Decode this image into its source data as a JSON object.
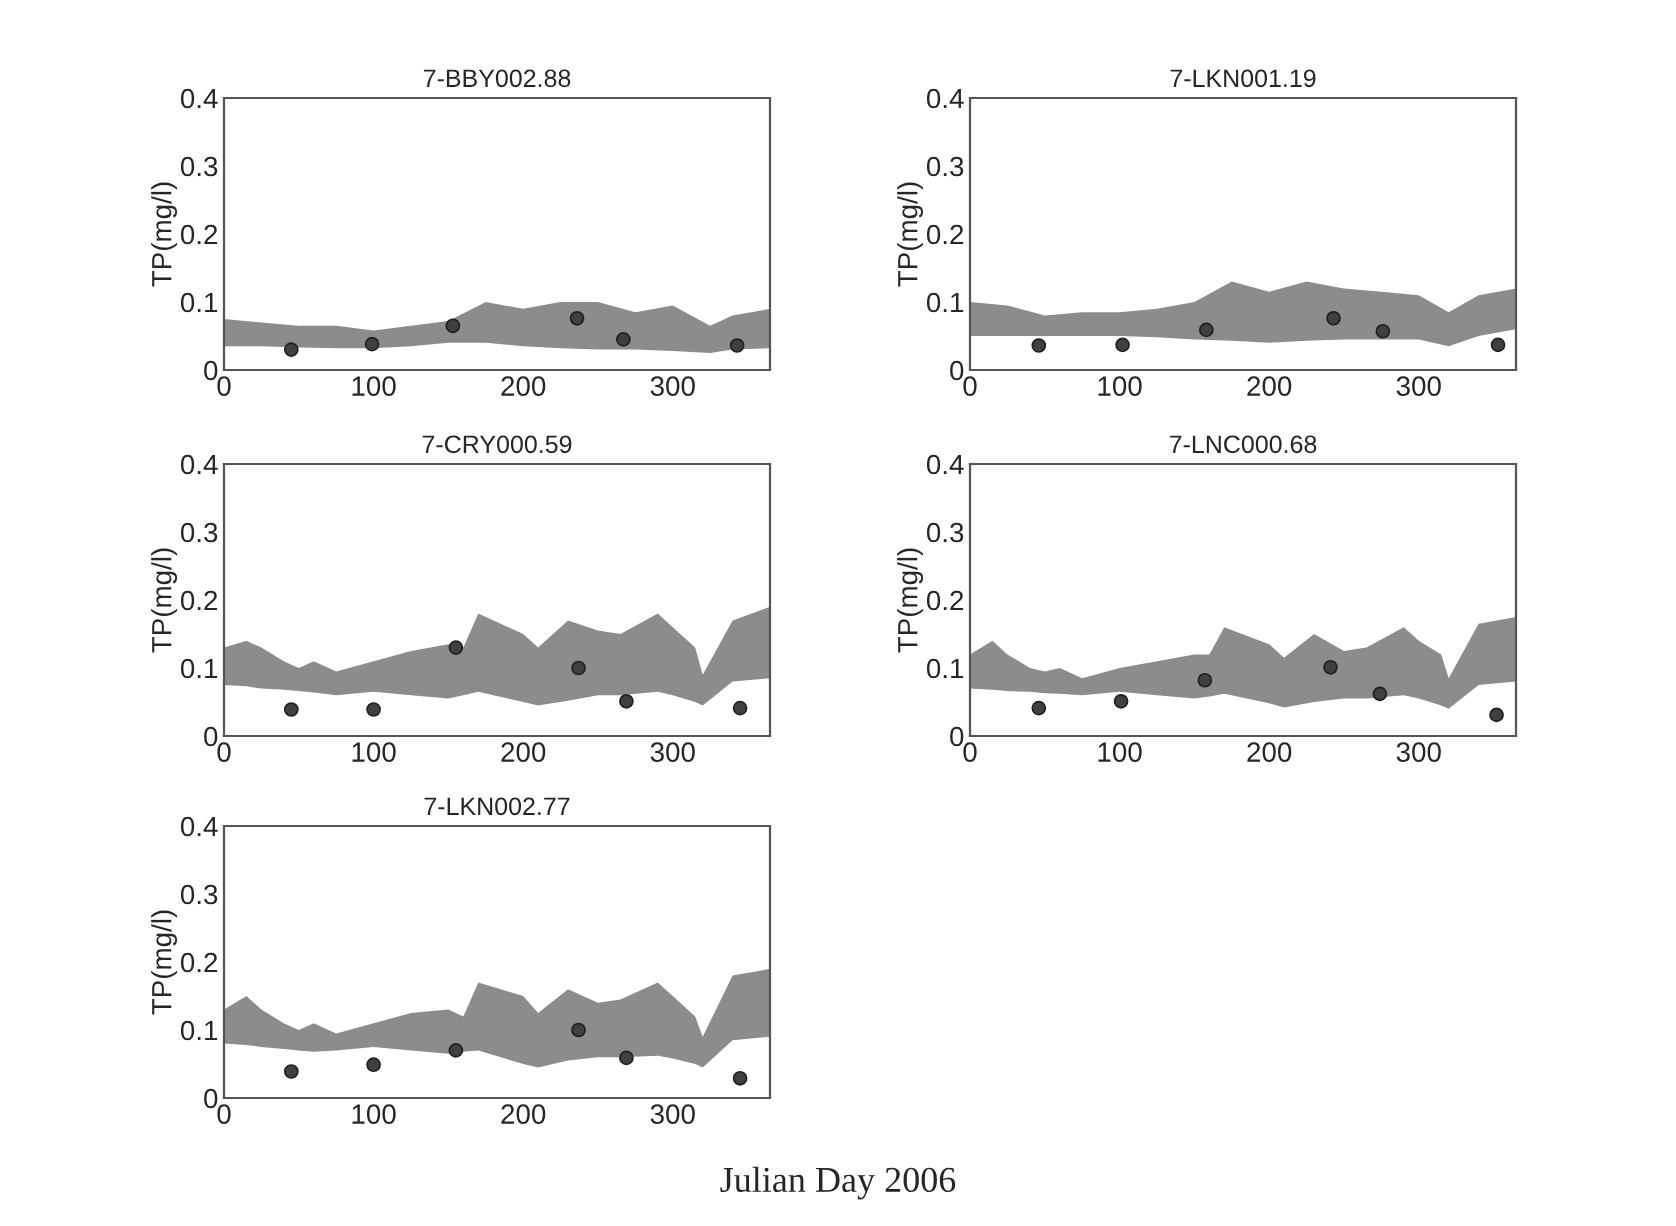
{
  "chart_data": [
    {
      "type": "scatter",
      "title": "7-BBY002.88",
      "ylabel": "TP(mg/l)",
      "xlim": [
        0,
        365
      ],
      "ylim": [
        0,
        0.4
      ],
      "xticks": [
        0,
        100,
        200,
        300
      ],
      "yticks": [
        0,
        0.1,
        0.2,
        0.3,
        0.4
      ],
      "grid": false,
      "legend": false,
      "marker": "circle",
      "series": [
        {
          "type": "line",
          "color": "#8c8c8c",
          "x": [
            0,
            25,
            50,
            75,
            100,
            125,
            150,
            175,
            200,
            225,
            250,
            275,
            300,
            325,
            340,
            365
          ],
          "values": [
            null,
            null,
            null,
            null,
            null,
            null,
            null,
            null,
            null,
            null,
            null,
            null,
            null,
            null,
            null,
            null
          ],
          "lower": [
            0.035,
            0.035,
            0.033,
            0.032,
            0.032,
            0.035,
            0.04,
            0.04,
            0.035,
            0.032,
            0.03,
            0.03,
            0.028,
            0.025,
            0.03,
            0.032
          ],
          "upper": [
            0.075,
            0.07,
            0.065,
            0.065,
            0.058,
            0.065,
            0.072,
            0.1,
            0.09,
            0.1,
            0.1,
            0.085,
            0.095,
            0.065,
            0.08,
            0.09
          ]
        },
        {
          "color": "#404040",
          "x": [
            45,
            99,
            153,
            236,
            267,
            343
          ],
          "values": [
            0.03,
            0.038,
            0.065,
            0.076,
            0.045,
            0.036
          ]
        }
      ]
    },
    {
      "type": "scatter",
      "title": "7-LKN001.19",
      "ylabel": "TP(mg/l)",
      "xlim": [
        0,
        365
      ],
      "ylim": [
        0,
        0.4
      ],
      "xticks": [
        0,
        100,
        200,
        300
      ],
      "yticks": [
        0,
        0.1,
        0.2,
        0.3,
        0.4
      ],
      "grid": false,
      "legend": false,
      "marker": "circle",
      "series": [
        {
          "type": "line",
          "color": "#8c8c8c",
          "x": [
            0,
            25,
            50,
            75,
            100,
            125,
            150,
            175,
            200,
            225,
            250,
            275,
            300,
            320,
            340,
            365
          ],
          "values": [
            null,
            null,
            null,
            null,
            null,
            null,
            null,
            null,
            null,
            null,
            null,
            null,
            null,
            null,
            null,
            null
          ],
          "lower": [
            0.05,
            0.05,
            0.05,
            0.05,
            0.05,
            0.048,
            0.045,
            0.043,
            0.04,
            0.043,
            0.045,
            0.045,
            0.045,
            0.035,
            0.05,
            0.06
          ],
          "upper": [
            0.1,
            0.095,
            0.08,
            0.085,
            0.085,
            0.09,
            0.1,
            0.13,
            0.115,
            0.13,
            0.12,
            0.115,
            0.11,
            0.085,
            0.11,
            0.12
          ]
        },
        {
          "color": "#404040",
          "x": [
            46,
            102,
            158,
            243,
            276,
            353
          ],
          "values": [
            0.036,
            0.037,
            0.059,
            0.076,
            0.057,
            0.037
          ]
        }
      ]
    },
    {
      "type": "scatter",
      "title": "7-CRY000.59",
      "ylabel": "TP(mg/l)",
      "xlim": [
        0,
        365
      ],
      "ylim": [
        0,
        0.4
      ],
      "xticks": [
        0,
        100,
        200,
        300
      ],
      "yticks": [
        0,
        0.1,
        0.2,
        0.3,
        0.4
      ],
      "grid": false,
      "legend": false,
      "marker": "circle",
      "series": [
        {
          "type": "line",
          "color": "#8c8c8c",
          "x": [
            0,
            15,
            25,
            40,
            50,
            60,
            75,
            100,
            125,
            150,
            160,
            170,
            200,
            210,
            230,
            250,
            265,
            290,
            300,
            315,
            320,
            340,
            365
          ],
          "values": [
            null,
            null,
            null,
            null,
            null,
            null,
            null,
            null,
            null,
            null,
            null,
            null,
            null,
            null,
            null,
            null,
            null,
            null,
            null,
            null,
            null,
            null,
            null
          ],
          "lower": [
            0.075,
            0.073,
            0.07,
            0.068,
            0.066,
            0.064,
            0.06,
            0.065,
            0.06,
            0.055,
            0.06,
            0.065,
            0.05,
            0.045,
            0.052,
            0.06,
            0.06,
            0.065,
            0.06,
            0.05,
            0.045,
            0.08,
            0.085
          ],
          "upper": [
            0.13,
            0.14,
            0.13,
            0.11,
            0.1,
            0.11,
            0.095,
            0.11,
            0.125,
            0.135,
            0.13,
            0.18,
            0.15,
            0.13,
            0.17,
            0.155,
            0.15,
            0.18,
            0.16,
            0.13,
            0.09,
            0.17,
            0.19
          ]
        },
        {
          "color": "#404040",
          "x": [
            45,
            100,
            155,
            237,
            269,
            345
          ],
          "values": [
            0.039,
            0.039,
            0.13,
            0.1,
            0.051,
            0.041
          ]
        }
      ]
    },
    {
      "type": "scatter",
      "title": "7-LNC000.68",
      "ylabel": "TP(mg/l)",
      "xlim": [
        0,
        365
      ],
      "ylim": [
        0,
        0.4
      ],
      "xticks": [
        0,
        100,
        200,
        300
      ],
      "yticks": [
        0,
        0.1,
        0.2,
        0.3,
        0.4
      ],
      "grid": false,
      "legend": false,
      "marker": "circle",
      "series": [
        {
          "type": "line",
          "color": "#8c8c8c",
          "x": [
            0,
            15,
            25,
            40,
            50,
            60,
            75,
            100,
            125,
            150,
            160,
            170,
            200,
            210,
            230,
            250,
            265,
            290,
            300,
            315,
            320,
            340,
            365
          ],
          "values": [
            null,
            null,
            null,
            null,
            null,
            null,
            null,
            null,
            null,
            null,
            null,
            null,
            null,
            null,
            null,
            null,
            null,
            null,
            null,
            null,
            null,
            null,
            null
          ],
          "lower": [
            0.07,
            0.068,
            0.066,
            0.065,
            0.063,
            0.062,
            0.06,
            0.065,
            0.06,
            0.055,
            0.058,
            0.062,
            0.048,
            0.042,
            0.05,
            0.055,
            0.055,
            0.06,
            0.055,
            0.045,
            0.04,
            0.075,
            0.08
          ],
          "upper": [
            0.12,
            0.14,
            0.12,
            0.1,
            0.095,
            0.1,
            0.085,
            0.1,
            0.11,
            0.12,
            0.12,
            0.16,
            0.135,
            0.115,
            0.15,
            0.125,
            0.13,
            0.16,
            0.14,
            0.12,
            0.085,
            0.165,
            0.175
          ]
        },
        {
          "color": "#404040",
          "x": [
            46,
            101,
            157,
            241,
            274,
            352
          ],
          "values": [
            0.041,
            0.051,
            0.082,
            0.101,
            0.062,
            0.031
          ]
        }
      ]
    },
    {
      "type": "scatter",
      "title": "7-LKN002.77",
      "ylabel": "TP(mg/l)",
      "xlabel": "Julian Day 2006",
      "xlim": [
        0,
        365
      ],
      "ylim": [
        0,
        0.4
      ],
      "xticks": [
        0,
        100,
        200,
        300
      ],
      "yticks": [
        0,
        0.1,
        0.2,
        0.3,
        0.4
      ],
      "grid": false,
      "legend": false,
      "marker": "circle",
      "series": [
        {
          "type": "line",
          "color": "#8c8c8c",
          "x": [
            0,
            15,
            25,
            40,
            50,
            60,
            75,
            100,
            125,
            150,
            160,
            170,
            200,
            210,
            230,
            250,
            265,
            290,
            300,
            315,
            320,
            340,
            365
          ],
          "values": [
            null,
            null,
            null,
            null,
            null,
            null,
            null,
            null,
            null,
            null,
            null,
            null,
            null,
            null,
            null,
            null,
            null,
            null,
            null,
            null,
            null,
            null,
            null
          ],
          "lower": [
            0.08,
            0.078,
            0.075,
            0.072,
            0.07,
            0.068,
            0.07,
            0.075,
            0.07,
            0.065,
            0.068,
            0.07,
            0.05,
            0.045,
            0.055,
            0.06,
            0.06,
            0.062,
            0.058,
            0.05,
            0.045,
            0.085,
            0.09
          ],
          "upper": [
            0.13,
            0.15,
            0.13,
            0.11,
            0.1,
            0.11,
            0.095,
            0.11,
            0.125,
            0.13,
            0.12,
            0.17,
            0.15,
            0.125,
            0.16,
            0.14,
            0.145,
            0.17,
            0.15,
            0.12,
            0.09,
            0.18,
            0.19
          ]
        },
        {
          "color": "#404040",
          "x": [
            45,
            100,
            155,
            237,
            269,
            345
          ],
          "values": [
            0.039,
            0.049,
            0.07,
            0.1,
            0.059,
            0.029
          ]
        }
      ]
    }
  ]
}
